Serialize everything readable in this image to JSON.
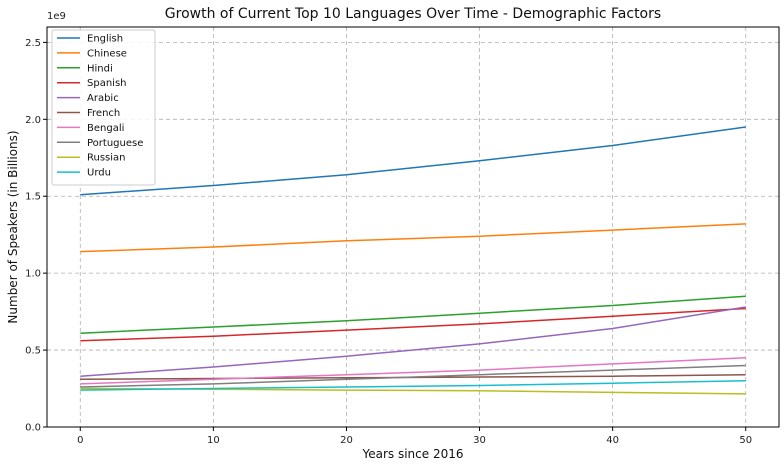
{
  "chart_data": {
    "type": "line",
    "title": "Growth of Current Top 10 Languages Over Time - Demographic Factors",
    "xlabel": "Years since 2016",
    "ylabel": "Number of Speakers (in Billions)",
    "y_offset_text": "1e9",
    "xlim": [
      -2.5,
      52.5
    ],
    "ylim": [
      0,
      2.6
    ],
    "xticks": [
      0,
      10,
      20,
      30,
      40,
      50
    ],
    "yticks": [
      0.0,
      0.5,
      1.0,
      1.5,
      2.0,
      2.5
    ],
    "xtick_labels": [
      "0",
      "10",
      "20",
      "30",
      "40",
      "50"
    ],
    "ytick_labels": [
      "0.0",
      "0.5",
      "1.0",
      "1.5",
      "2.0",
      "2.5"
    ],
    "grid": true,
    "legend_position": "upper left",
    "x": [
      0,
      10,
      20,
      30,
      40,
      50
    ],
    "series": [
      {
        "name": "English",
        "color": "#1f77b4",
        "values": [
          1.51,
          1.57,
          1.64,
          1.73,
          1.83,
          1.95
        ]
      },
      {
        "name": "Chinese",
        "color": "#ff7f0e",
        "values": [
          1.14,
          1.17,
          1.21,
          1.24,
          1.28,
          1.32
        ]
      },
      {
        "name": "Hindi",
        "color": "#2ca02c",
        "values": [
          0.61,
          0.65,
          0.69,
          0.74,
          0.79,
          0.85
        ]
      },
      {
        "name": "Spanish",
        "color": "#d62728",
        "values": [
          0.56,
          0.59,
          0.63,
          0.67,
          0.72,
          0.77
        ]
      },
      {
        "name": "Arabic",
        "color": "#9467bd",
        "values": [
          0.33,
          0.39,
          0.46,
          0.54,
          0.64,
          0.78
        ]
      },
      {
        "name": "French",
        "color": "#8c564b",
        "values": [
          0.31,
          0.315,
          0.32,
          0.325,
          0.33,
          0.34
        ]
      },
      {
        "name": "Bengali",
        "color": "#e377c2",
        "values": [
          0.28,
          0.31,
          0.34,
          0.37,
          0.41,
          0.45
        ]
      },
      {
        "name": "Portuguese",
        "color": "#7f7f7f",
        "values": [
          0.26,
          0.28,
          0.31,
          0.34,
          0.37,
          0.4
        ]
      },
      {
        "name": "Russian",
        "color": "#bcbd22",
        "values": [
          0.25,
          0.245,
          0.24,
          0.235,
          0.225,
          0.215
        ]
      },
      {
        "name": "Urdu",
        "color": "#17becf",
        "values": [
          0.24,
          0.25,
          0.26,
          0.27,
          0.285,
          0.3
        ]
      }
    ]
  }
}
